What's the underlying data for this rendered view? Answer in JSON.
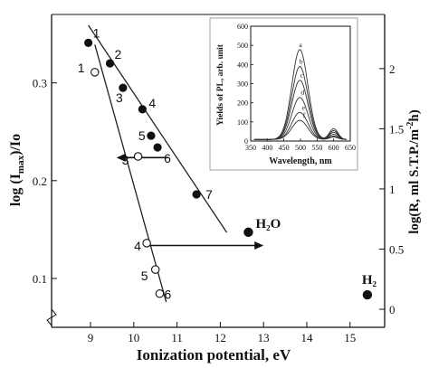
{
  "chart_data": [
    {
      "type": "scatter",
      "xlabel": "Ionization potential, eV",
      "ylabel_left": "log (I_max)/Io",
      "ylabel_right": "log(R, ml S.T.P./m⁻²h)",
      "xlim": [
        8.1,
        15.8
      ],
      "ylim_left": [
        0.05,
        0.37
      ],
      "ylim_right": [
        -0.15,
        2.45
      ],
      "x_ticks": [
        9,
        10,
        11,
        12,
        13,
        14,
        15
      ],
      "y_left_ticks": [
        0.1,
        0.2,
        0.3
      ],
      "y_right_ticks": [
        0,
        0.5,
        1,
        1.5,
        2
      ],
      "y_right_tick_labels": [
        "0",
        "0.5",
        "1",
        "1.5",
        "2"
      ],
      "series": [
        {
          "marker": "filled",
          "axis": "left",
          "points": [
            {
              "label": "1",
              "x": 8.95,
              "y": 0.341
            },
            {
              "label": "2",
              "x": 9.45,
              "y": 0.32
            },
            {
              "label": "3",
              "x": 9.75,
              "y": 0.295
            },
            {
              "label": "4",
              "x": 10.2,
              "y": 0.273
            },
            {
              "label": "5",
              "x": 10.4,
              "y": 0.246
            },
            {
              "label": "6",
              "x": 10.55,
              "y": 0.234
            },
            {
              "label": "7",
              "x": 11.45,
              "y": 0.186
            }
          ],
          "fit_line": {
            "x": [
              8.95,
              12.15
            ],
            "y": [
              0.359,
              0.147
            ]
          }
        },
        {
          "marker": "open",
          "axis": "right",
          "points": [
            {
              "label": "1",
              "x": 9.1,
              "y": 1.97
            },
            {
              "label": "3",
              "x": 10.1,
              "y": 1.27
            },
            {
              "label": "4",
              "x": 10.3,
              "y": 0.55
            },
            {
              "label": "5",
              "x": 10.5,
              "y": 0.33
            },
            {
              "label": "6",
              "x": 10.6,
              "y": 0.13
            }
          ],
          "fit_line": {
            "x": [
              9.1,
              10.75
            ],
            "y": [
              2.2,
              0.06
            ]
          }
        },
        {
          "marker": "filled",
          "axis": "right",
          "points": [
            {
              "label": "H₂O",
              "x": 12.65,
              "y": 0.64
            },
            {
              "label": "H₂",
              "x": 15.4,
              "y": 0.12
            }
          ]
        }
      ],
      "arrows": [
        {
          "direction": "left",
          "from_x": 10.8,
          "to_x": 9.6,
          "y": 1.26
        },
        {
          "direction": "right",
          "from_x": 10.35,
          "to_x": 13.0,
          "y": 0.53
        }
      ]
    },
    {
      "type": "line",
      "xlabel": "Wavelength, nm",
      "ylabel": "Yields of PL, arb. unit",
      "xlim": [
        350,
        650
      ],
      "ylim": [
        0,
        600
      ],
      "x_ticks": [
        350,
        400,
        450,
        500,
        550,
        600,
        650
      ],
      "x_tick_labels": [
        "350",
        "400",
        "450",
        "500",
        "550",
        "600",
        "650"
      ],
      "y_ticks": [
        0,
        100,
        200,
        300,
        400,
        500,
        600
      ],
      "peak_x": 498,
      "series": [
        {
          "name": "a",
          "peak": 478
        },
        {
          "name": "b",
          "peak": 390
        },
        {
          "name": "c",
          "peak": 318
        },
        {
          "name": "d",
          "peak": 228
        },
        {
          "name": "e",
          "peak": 150
        },
        {
          "name": "f",
          "peak": 108
        }
      ]
    }
  ]
}
